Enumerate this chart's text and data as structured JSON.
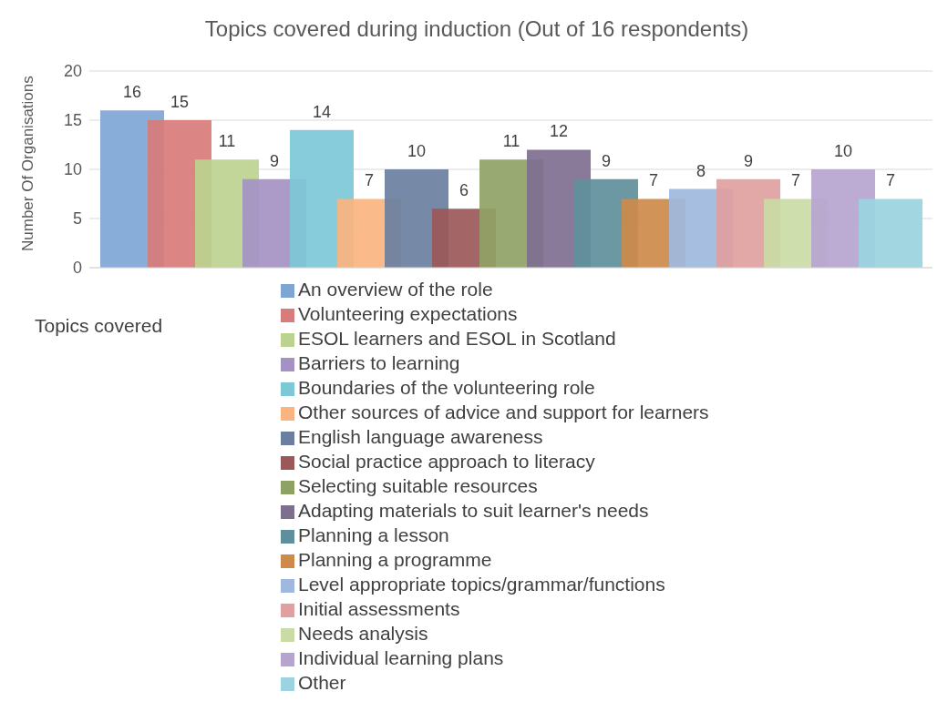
{
  "chart_data": {
    "type": "bar",
    "title": "Topics covered during induction (Out of 16 respondents)",
    "ylabel": "Number Of Organisations",
    "xlabel": "Topics covered",
    "categories": [
      null
    ],
    "series": [
      {
        "name": "An overview of the role",
        "color": "#7ea6d5",
        "values": [
          16
        ]
      },
      {
        "name": "Volunteering expectations",
        "color": "#d87b7b",
        "values": [
          15
        ]
      },
      {
        "name": "ESOL learners and ESOL in Scotland",
        "color": "#bcd28f",
        "values": [
          11
        ]
      },
      {
        "name": "Barriers to learning",
        "color": "#a592c4",
        "values": [
          9
        ]
      },
      {
        "name": "Boundaries of the volunteering role",
        "color": "#7dc8d7",
        "values": [
          14
        ]
      },
      {
        "name": "Other sources of advice and support for learners",
        "color": "#fbb47f",
        "values": [
          7
        ]
      },
      {
        "name": "English language awareness",
        "color": "#6a7f9f",
        "values": [
          10
        ]
      },
      {
        "name": "Social practice approach to literacy",
        "color": "#9b5858",
        "values": [
          6
        ]
      },
      {
        "name": "Selecting suitable resources",
        "color": "#8fa265",
        "values": [
          11
        ]
      },
      {
        "name": "Adapting materials to suit learner's needs",
        "color": "#7e6f8f",
        "values": [
          12
        ]
      },
      {
        "name": "Planning a lesson",
        "color": "#5f8f9c",
        "values": [
          9
        ]
      },
      {
        "name": "Planning a programme",
        "color": "#cd8a4a",
        "values": [
          7
        ]
      },
      {
        "name": "Level appropriate topics/grammar/functions",
        "color": "#9eb9dd",
        "values": [
          8
        ]
      },
      {
        "name": "Initial assessments",
        "color": "#e0a0a0",
        "values": [
          9
        ]
      },
      {
        "name": "Needs analysis",
        "color": "#cbdba6",
        "values": [
          7
        ]
      },
      {
        "name": "Individual learning plans",
        "color": "#b6a4cf",
        "values": [
          10
        ]
      },
      {
        "name": "Other",
        "color": "#9ad4e0",
        "values": [
          7
        ]
      }
    ],
    "ylim": [
      0,
      20
    ],
    "yticks": [
      0,
      5,
      10,
      15,
      20
    ],
    "grid": "y",
    "legend": "bottom",
    "data_labels": true
  }
}
